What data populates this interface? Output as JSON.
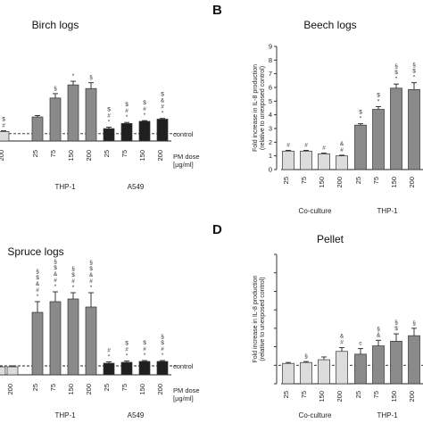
{
  "colors": {
    "light": "#dcdcdc",
    "mid": "#8a8a8a",
    "dark": "#1f1f1f",
    "thp1_first": "#bdbdbd"
  },
  "chart_data": [
    {
      "panel": "",
      "type": "bar",
      "title": "Birch logs",
      "ylim": [
        0,
        12
      ],
      "control_line": "control",
      "dose_label": [
        "PM dose",
        "[µg/ml]"
      ],
      "groups": [
        {
          "name": "",
          "color": "light",
          "categories": [
            "200"
          ],
          "values": [
            1.3
          ],
          "errors": [
            0.1
          ],
          "annotations": [
            "$\n#"
          ]
        },
        {
          "name": "THP-1",
          "color": "mid",
          "categories": [
            "25",
            "75",
            "150",
            "200"
          ],
          "values": [
            3.3,
            5.9,
            7.7,
            7.2
          ],
          "errors": [
            0.2,
            0.6,
            0.5,
            0.8
          ],
          "annotations": [
            "",
            "§",
            "*",
            "§"
          ]
        },
        {
          "name": "A549",
          "color": "dark",
          "categories": [
            "25",
            "75",
            "150",
            "200"
          ],
          "values": [
            1.7,
            2.4,
            2.7,
            3.0
          ],
          "errors": [
            0.2,
            0.15,
            0.1,
            0.1
          ],
          "annotations": [
            "$\n#\n*",
            "$\n#\n*",
            "$\n#\n*",
            "$\n&\n#\n*"
          ]
        }
      ]
    },
    {
      "panel": "B",
      "type": "bar",
      "title": "Beech logs",
      "ylabel": [
        "Fold increase in IL-8 production",
        "(relative to unexposed control)"
      ],
      "yticks": [
        "0",
        "1",
        "2",
        "3",
        "4",
        "5",
        "6",
        "7",
        "8",
        "9"
      ],
      "ylim": [
        0,
        9
      ],
      "groups": [
        {
          "name": "Co-culture",
          "color": "light",
          "categories": [
            "25",
            "75",
            "150",
            "200"
          ],
          "values": [
            1.35,
            1.35,
            1.15,
            1.0
          ],
          "errors": [
            0.05,
            0.05,
            0.05,
            0.05
          ],
          "annotations": [
            "#",
            "#",
            "#",
            "&\n#"
          ]
        },
        {
          "name": "THP-1",
          "color": "mid",
          "categories": [
            "25",
            "75",
            "150",
            "200"
          ],
          "values": [
            3.25,
            4.4,
            5.95,
            5.85
          ],
          "errors": [
            0.1,
            0.2,
            0.3,
            0.5
          ],
          "annotations": [
            "$\n*",
            "$\n*",
            "§\n$\n*",
            "§\n$\n*"
          ]
        }
      ]
    },
    {
      "panel": "",
      "type": "bar",
      "title": "Spruce logs",
      "ylim": [
        0,
        12
      ],
      "control_line": "control",
      "dose_label": [
        "PM dose",
        "[µg/ml]"
      ],
      "groups": [
        {
          "name": "",
          "color": "light",
          "categories": [
            "",
            "200"
          ],
          "values": [
            0.9,
            0.9
          ],
          "errors": [
            0.1,
            0.1
          ],
          "annotations": [
            "",
            ""
          ]
        },
        {
          "name": "THP-1",
          "color": "mid",
          "categories": [
            "25",
            "75",
            "150",
            "200"
          ],
          "values": [
            7.0,
            8.2,
            8.5,
            7.6
          ],
          "errors": [
            1.2,
            1.1,
            0.7,
            1.6
          ],
          "annotations": [
            "§\n$\n&\n#\n*",
            "§\n$\n&\n#\n*",
            "§\n$\n#\n*",
            "§\n$\n&\n#\n*"
          ]
        },
        {
          "name": "A549",
          "color": "dark",
          "categories": [
            "25",
            "75",
            "150",
            "200"
          ],
          "values": [
            1.3,
            1.4,
            1.5,
            1.5
          ],
          "errors": [
            0.15,
            0.15,
            0.1,
            0.1
          ],
          "annotations": [
            "#\n*",
            "$\n#\n*",
            "$\n#\n*",
            "§\n$\n#\n*"
          ]
        }
      ]
    },
    {
      "panel": "D",
      "type": "bar",
      "title": "Pellet",
      "ylabel": [
        "Fold increase in IL-8 production",
        "(relative to unexposed control)"
      ],
      "ylim": [
        0,
        7
      ],
      "control_line": "",
      "groups": [
        {
          "name": "Co-culture",
          "color": "light",
          "categories": [
            "25",
            "75",
            "150",
            "200"
          ],
          "values": [
            1.1,
            1.15,
            1.3,
            1.75
          ],
          "errors": [
            0.05,
            0.05,
            0.15,
            0.2
          ],
          "annotations": [
            "",
            "§",
            "",
            "&\n#"
          ]
        },
        {
          "name": "THP-1",
          "color": "mid",
          "categories": [
            "25",
            "75",
            "150",
            "200"
          ],
          "values": [
            1.6,
            2.05,
            2.3,
            2.6
          ],
          "errors": [
            0.3,
            0.3,
            0.4,
            0.4
          ],
          "annotations": [
            "c",
            "§\n&",
            "§\n$",
            "§"
          ]
        }
      ]
    }
  ]
}
